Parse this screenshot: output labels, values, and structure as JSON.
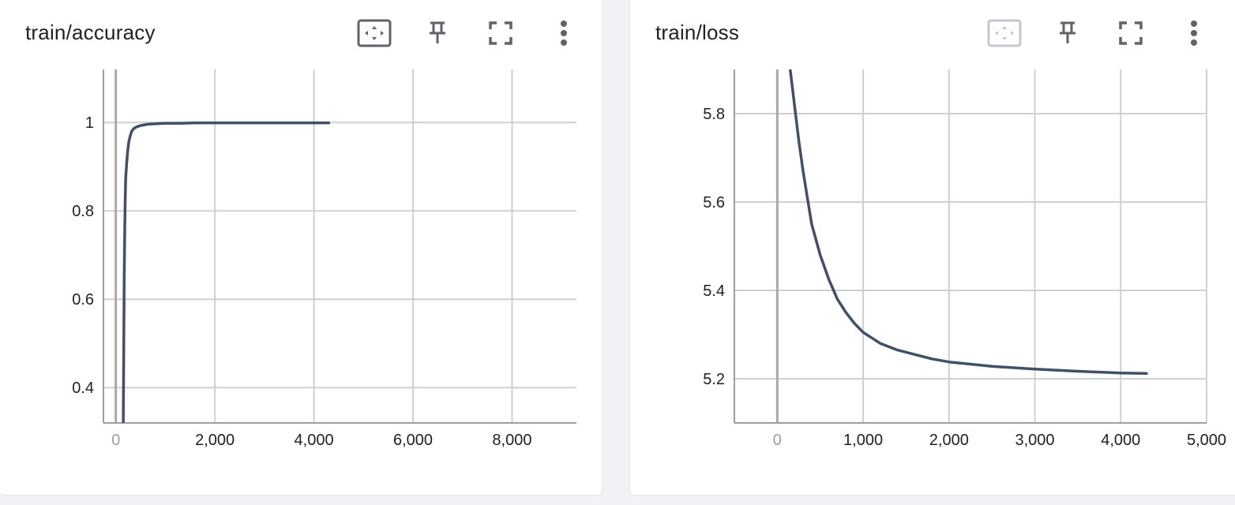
{
  "cards": [
    {
      "title": "train/accuracy",
      "fit_active": true
    },
    {
      "title": "train/loss",
      "fit_active": false
    }
  ],
  "chart_data": [
    {
      "type": "line",
      "title": "train/accuracy",
      "xlabel": "",
      "ylabel": "",
      "xlim": [
        -250,
        9300
      ],
      "ylim": [
        0.32,
        1.12
      ],
      "x_ticks": [
        0,
        2000,
        4000,
        6000,
        8000
      ],
      "x_tick_labels": [
        "0",
        "2,000",
        "4,000",
        "6,000",
        "8,000"
      ],
      "y_ticks": [
        0.4,
        0.6,
        0.8,
        1
      ],
      "y_tick_labels": [
        "0.4",
        "0.6",
        "0.8",
        "1"
      ],
      "grid": true,
      "line_color": "#425066",
      "series": [
        {
          "x": [
            150,
            160,
            170,
            180,
            190,
            200,
            220,
            240,
            260,
            290,
            320,
            360,
            420,
            500,
            650,
            800,
            1000,
            1300,
            1600,
            2000,
            2500,
            3000,
            3500,
            4000,
            4300
          ],
          "y": [
            0.32,
            0.48,
            0.65,
            0.76,
            0.83,
            0.875,
            0.91,
            0.935,
            0.955,
            0.97,
            0.98,
            0.986,
            0.99,
            0.993,
            0.996,
            0.997,
            0.998,
            0.998,
            0.999,
            0.999,
            0.999,
            0.999,
            0.999,
            0.999,
            0.999
          ]
        }
      ]
    },
    {
      "type": "line",
      "title": "train/loss",
      "xlabel": "",
      "ylabel": "",
      "xlim": [
        -500,
        5000
      ],
      "ylim": [
        5.1,
        5.9
      ],
      "x_ticks": [
        0,
        1000,
        2000,
        3000,
        4000,
        5000
      ],
      "x_tick_labels": [
        "0",
        "1,000",
        "2,000",
        "3,000",
        "4,000",
        "5,000"
      ],
      "y_ticks": [
        5.2,
        5.4,
        5.6,
        5.8
      ],
      "y_tick_labels": [
        "5.2",
        "5.4",
        "5.6",
        "5.8"
      ],
      "grid": true,
      "line_color": "#425066",
      "series": [
        {
          "x": [
            150,
            200,
            250,
            300,
            350,
            400,
            500,
            600,
            700,
            800,
            900,
            1000,
            1200,
            1400,
            1600,
            1800,
            2000,
            2500,
            3000,
            3500,
            4000,
            4300
          ],
          "y": [
            5.9,
            5.82,
            5.74,
            5.67,
            5.61,
            5.55,
            5.48,
            5.425,
            5.38,
            5.35,
            5.325,
            5.305,
            5.28,
            5.265,
            5.255,
            5.245,
            5.238,
            5.228,
            5.222,
            5.217,
            5.213,
            5.212
          ]
        }
      ]
    }
  ]
}
